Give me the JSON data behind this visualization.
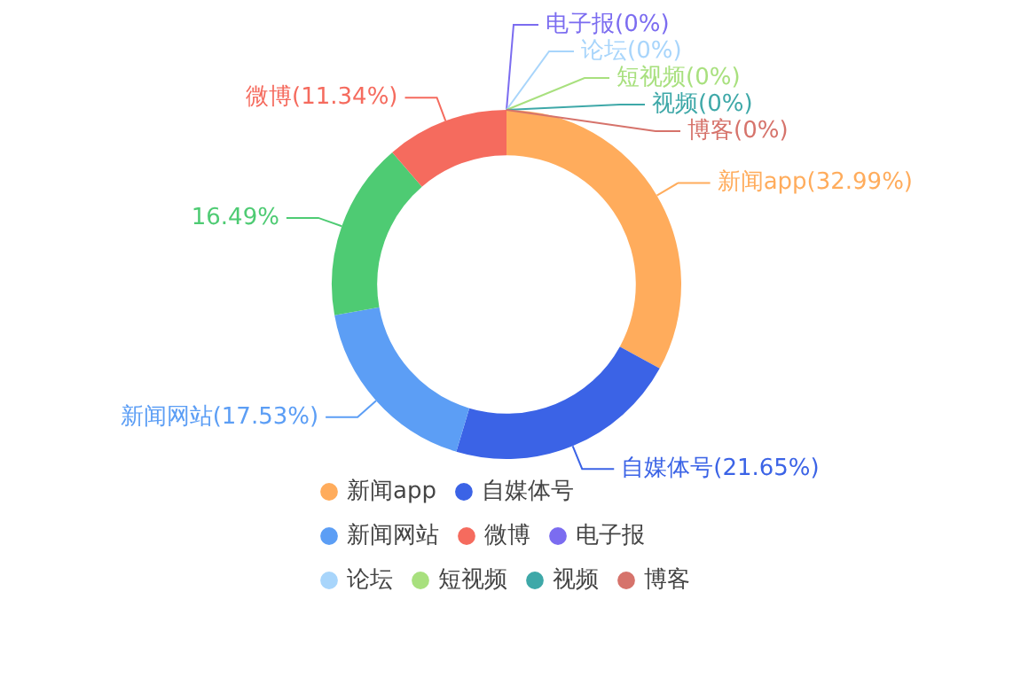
{
  "chart_data": {
    "type": "donut",
    "categories": [
      "新闻app",
      "自媒体号",
      "新闻网站",
      null,
      "微博",
      "电子报",
      "论坛",
      "短视频",
      "视频",
      "博客"
    ],
    "values": [
      32.99,
      21.65,
      17.53,
      16.49,
      11.34,
      0,
      0,
      0,
      0,
      0
    ],
    "colors": [
      "#ffac5c",
      "#3b63e6",
      "#5c9ef5",
      "#4ecb73",
      "#f56b5e",
      "#7b6cf0",
      "#a8d5fb",
      "#a8e07e",
      "#3ea8a8",
      "#d6736b"
    ],
    "value_labels": [
      "新闻app(32.99%)",
      "自媒体号(21.65%)",
      "新闻网站(17.53%)",
      "16.49%",
      "微博(11.34%)",
      "电子报(0%)",
      "论坛(0%)",
      "短视频(0%)",
      "视频(0%)",
      "博客(0%)"
    ],
    "legend": "bottom"
  }
}
